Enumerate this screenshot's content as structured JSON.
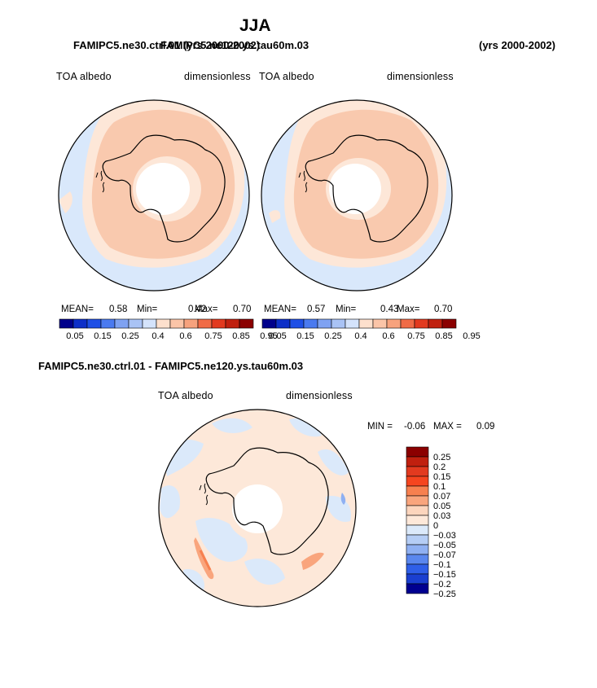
{
  "page": {
    "title": "JJA",
    "subtitle_left": "FAMIPC5.ne30.ctrl.01 (yrs 2000-2002)",
    "subtitle_overlap": "FAMIPC5.ne120.ys.tau60m.03",
    "subtitle_right": "(yrs 2000-2002)",
    "diff_title": "FAMIPC5.ne30.ctrl.01 - FAMIPC5.ne120.ys.tau60m.03"
  },
  "panels": {
    "left": {
      "variable": "TOA albedo",
      "units": "dimensionless",
      "mean_label": "MEAN=",
      "mean": "0.58",
      "min_label": "Min=",
      "min": "0.42",
      "max_label": "Max=",
      "max": "0.70"
    },
    "right": {
      "variable": "TOA albedo",
      "units": "dimensionless",
      "mean_label": "MEAN=",
      "mean": "0.57",
      "min_label": "Min=",
      "min": "0.43",
      "max_label": "Max=",
      "max": "0.70"
    },
    "diff": {
      "variable": "TOA albedo",
      "units": "dimensionless",
      "min_label": "MIN =",
      "min": "-0.06",
      "max_label": "MAX =",
      "max": "0.09"
    }
  },
  "chart_data": [
    {
      "type": "heatmap",
      "title": "TOA albedo (FAMIPC5.ne30.ctrl.01)",
      "projection": "south polar stereographic",
      "units": "dimensionless",
      "colorbar_levels": [
        "0.05",
        "0.15",
        "0.25",
        "0.4",
        "0.6",
        "0.75",
        "0.85",
        "0.95"
      ],
      "colorbar_colors": [
        "#00008b",
        "#0d2fc8",
        "#1e4fe6",
        "#4a7af0",
        "#7fa2f2",
        "#a9c3f5",
        "#d4e3fb",
        "#fde0cd",
        "#fbc5a8",
        "#f7a27d",
        "#f06b46",
        "#e23a1f",
        "#c0200f",
        "#8b0000"
      ],
      "stats": {
        "mean": 0.58,
        "min": 0.42,
        "max": 0.7
      }
    },
    {
      "type": "heatmap",
      "title": "TOA albedo (FAMIPC5.ne120.ys.tau60m.03)",
      "projection": "south polar stereographic",
      "units": "dimensionless",
      "colorbar_levels": [
        "0.05",
        "0.15",
        "0.25",
        "0.4",
        "0.6",
        "0.75",
        "0.85",
        "0.95"
      ],
      "stats": {
        "mean": 0.57,
        "min": 0.43,
        "max": 0.7
      }
    },
    {
      "type": "heatmap",
      "title": "TOA albedo difference",
      "projection": "south polar stereographic",
      "units": "dimensionless",
      "colorbar_levels": [
        "0.25",
        "0.2",
        "0.15",
        "0.1",
        "0.07",
        "0.05",
        "0.03",
        "0",
        "-0.03",
        "-0.05",
        "-0.07",
        "-0.1",
        "-0.15",
        "-0.2",
        "-0.25"
      ],
      "colorbar_colors": [
        "#8b0000",
        "#c0200f",
        "#e23a1f",
        "#f5451f",
        "#f7804f",
        "#f9a57d",
        "#fcd5bd",
        "#fde8d9",
        "#dbe9fa",
        "#b5cdf5",
        "#8fb0f2",
        "#5a87ee",
        "#2f5fe8",
        "#1a3fd0",
        "#000090"
      ],
      "stats": {
        "min": -0.06,
        "max": 0.09
      }
    }
  ]
}
